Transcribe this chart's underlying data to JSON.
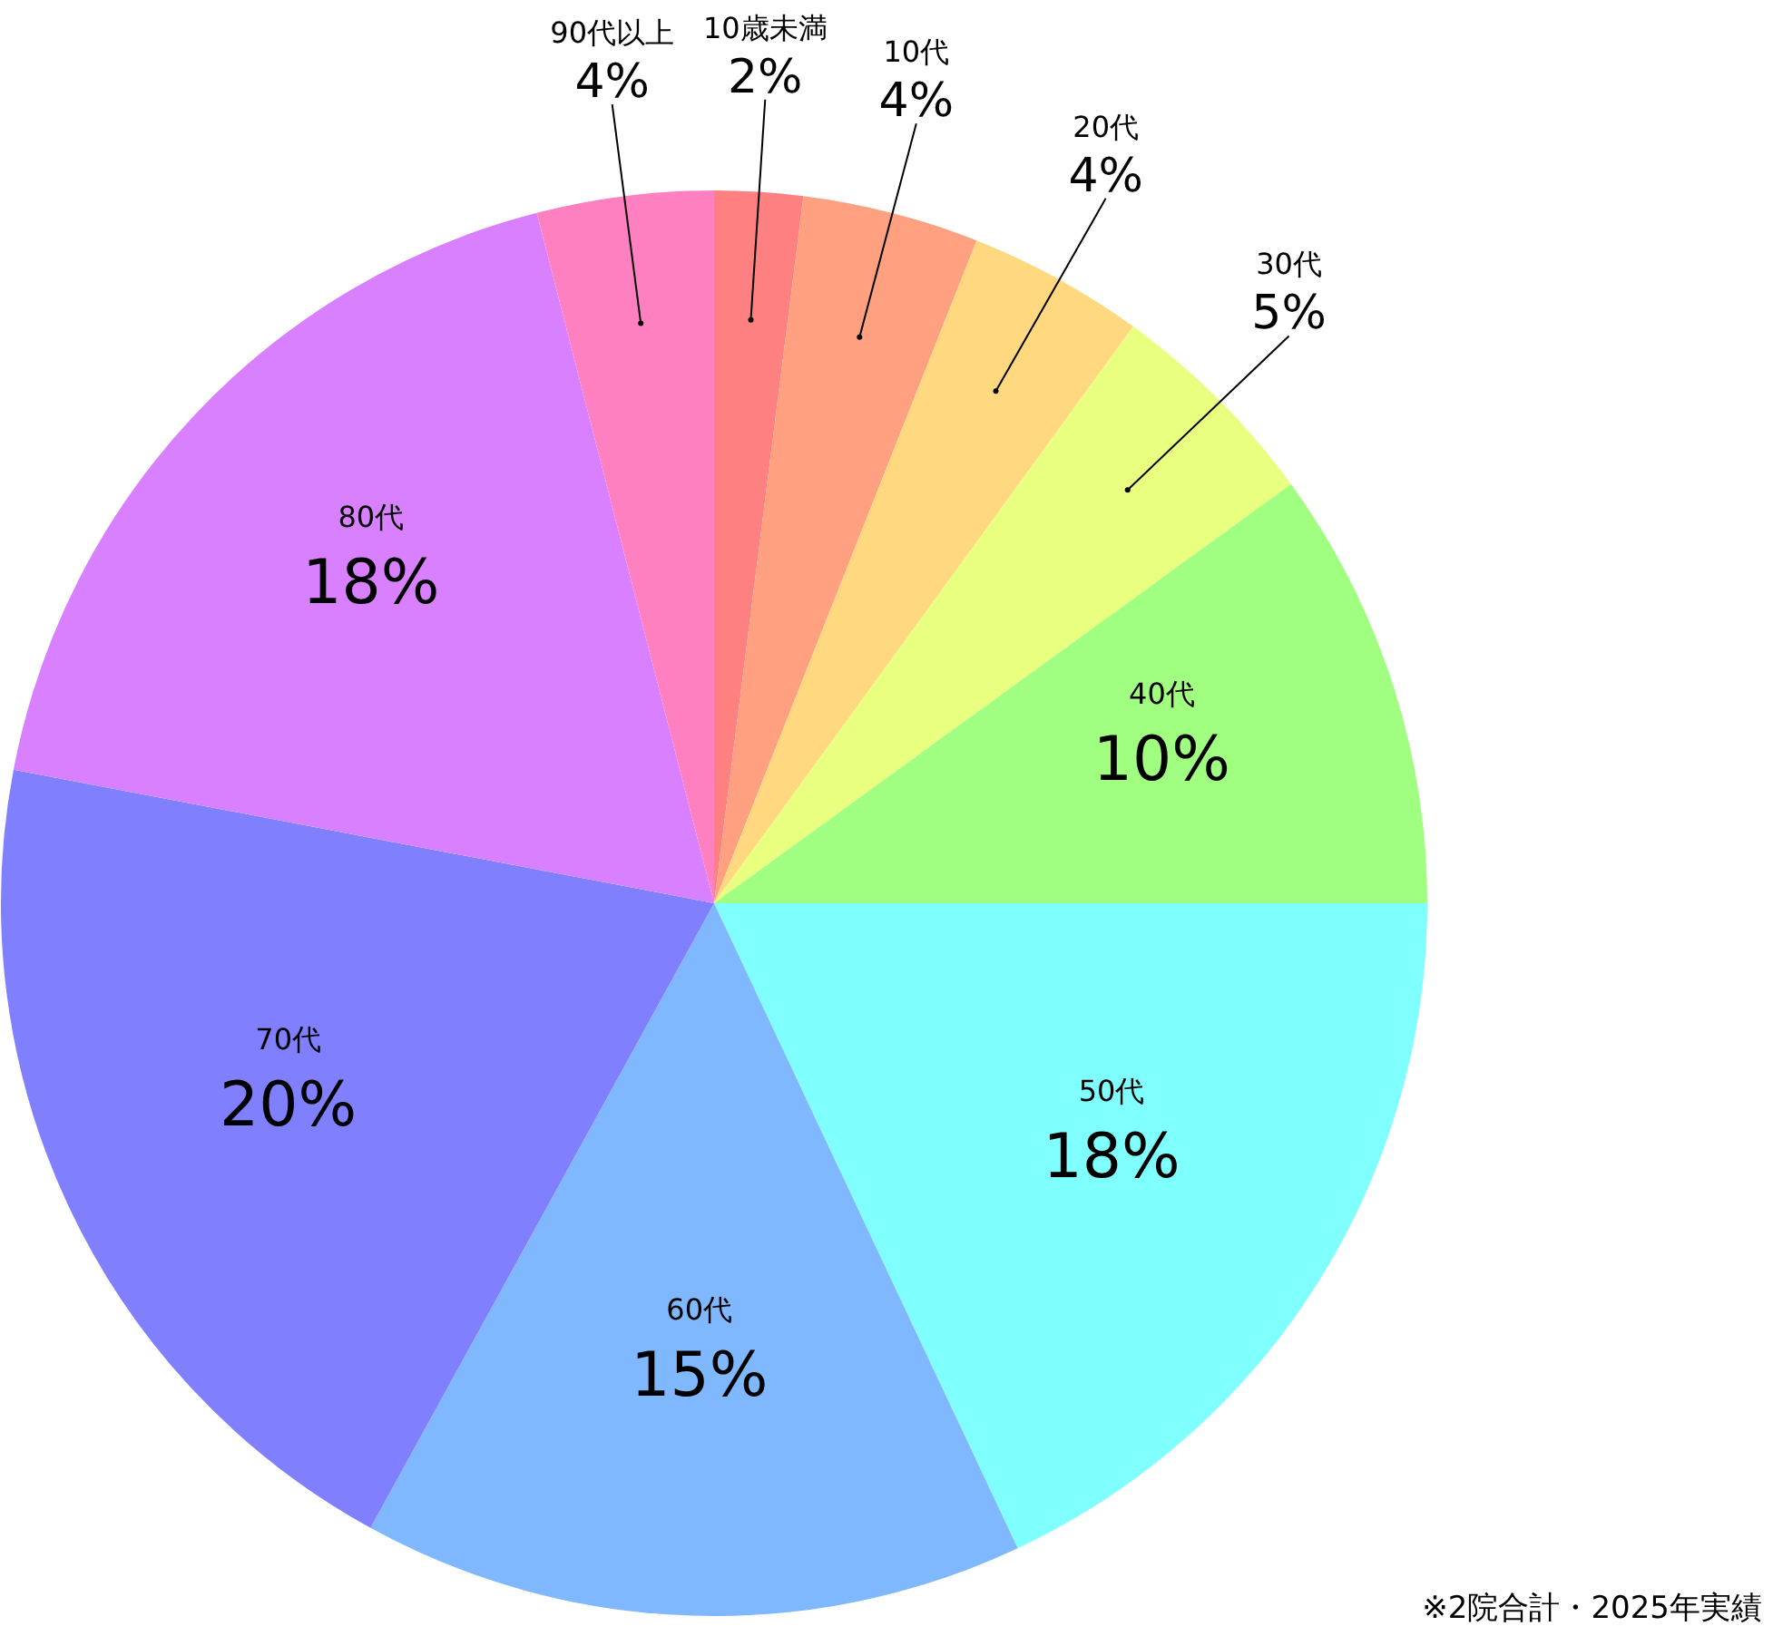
{
  "chart_data": {
    "type": "pie",
    "categories": [
      "10歳未満",
      "10代",
      "20代",
      "30代",
      "40代",
      "50代",
      "60代",
      "70代",
      "80代",
      "90代以上"
    ],
    "values": [
      2,
      4,
      4,
      5,
      10,
      18,
      15,
      20,
      18,
      4
    ],
    "colors": [
      "#ff8080",
      "#ffa080",
      "#ffd880",
      "#e8ff80",
      "#a0ff80",
      "#80ffff",
      "#80b8ff",
      "#8080ff",
      "#d880ff",
      "#ff80c0"
    ],
    "value_labels": [
      "2%",
      "4%",
      "4%",
      "5%",
      "10%",
      "18%",
      "15%",
      "20%",
      "18%",
      "4%"
    ],
    "legend": false,
    "annotations": [
      "※2院合計・2025年実績"
    ]
  }
}
